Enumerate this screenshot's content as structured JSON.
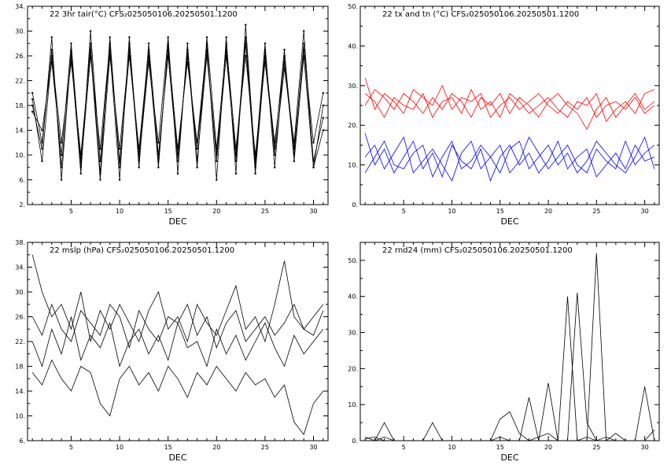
{
  "chart_data": [
    {
      "type": "line",
      "title": "22  3hr tair(°C)  CFS₂025050106.20250501.1200",
      "xlabel": "DEC",
      "ylabel": "",
      "xlim": [
        0.5,
        31.5
      ],
      "ylim": [
        2,
        34
      ],
      "xticks": [
        5,
        10,
        15,
        20,
        25,
        30
      ],
      "yticks": [
        2,
        6,
        10,
        14,
        18,
        22,
        26,
        30,
        34
      ],
      "ytick_labels": [
        "2.",
        "6.",
        "10.",
        "14.",
        "18.",
        "22.",
        "26.",
        "30.",
        "34."
      ],
      "line_colors": [
        "#000000"
      ],
      "grid": false,
      "description_series": "approx. 30 ensemble members of 3-hourly air temperature with strong diurnal cycle, daily min ~4-10, daily max ~26-32",
      "series": [
        {
          "values": [
            18,
            11,
            29,
            6,
            27,
            9,
            28,
            7,
            29,
            8,
            28,
            10,
            26,
            9,
            27,
            11,
            25,
            12,
            28,
            6,
            29,
            7,
            31,
            8,
            27,
            10,
            24,
            12,
            30,
            8,
            18
          ]
        },
        {
          "values": [
            20,
            12,
            27,
            8,
            26,
            7,
            30,
            9,
            27,
            6,
            29,
            8,
            28,
            10,
            26,
            9,
            27,
            8,
            29,
            11,
            27,
            9,
            28,
            7,
            26,
            12,
            25,
            10,
            28,
            9,
            16
          ]
        },
        {
          "values": [
            17,
            14,
            25,
            10,
            28,
            8,
            26,
            11,
            28,
            9,
            26,
            11,
            27,
            8,
            28,
            10,
            26,
            11,
            27,
            9,
            26,
            10,
            29,
            9,
            28,
            8,
            26,
            11,
            27,
            12,
            20
          ]
        },
        {
          "values": [
            19,
            9,
            26,
            12,
            25,
            10,
            27,
            6,
            26,
            11,
            27,
            9,
            25,
            12,
            29,
            7,
            28,
            9,
            26,
            10,
            28,
            11,
            26,
            10,
            25,
            11,
            27,
            9,
            26,
            8,
            14
          ]
        }
      ]
    },
    {
      "type": "line",
      "title": "22  tx  and  tn  (°C)  CFS₂025050106.20250501.1200",
      "xlabel": "DEC",
      "ylabel": "",
      "xlim": [
        0.5,
        31.5
      ],
      "ylim": [
        0,
        50
      ],
      "xticks": [
        5,
        10,
        15,
        20,
        25,
        30
      ],
      "yticks": [
        0,
        10,
        20,
        30,
        40,
        50
      ],
      "ytick_labels": [
        "0.",
        "10.",
        "20.",
        "30.",
        "40.",
        "50."
      ],
      "line_colors": [
        "#ff0000",
        "#0000ff"
      ],
      "grid": false,
      "series": [
        {
          "name": "tx",
          "values": [
            32,
            24,
            28,
            26,
            23,
            29,
            27,
            25,
            30,
            24,
            27,
            26,
            28,
            22,
            25,
            27,
            24,
            26,
            28,
            25,
            23,
            26,
            24,
            27,
            22,
            25,
            26,
            24,
            27,
            23,
            25
          ]
        },
        {
          "name": "tx",
          "values": [
            28,
            26,
            22,
            27,
            25,
            24,
            28,
            22,
            26,
            27,
            23,
            29,
            24,
            26,
            22,
            28,
            26,
            23,
            25,
            27,
            24,
            22,
            26,
            25,
            28,
            21,
            24,
            26,
            23,
            28,
            29
          ]
        },
        {
          "name": "tx",
          "values": [
            25,
            29,
            27,
            24,
            28,
            26,
            23,
            27,
            24,
            28,
            26,
            22,
            27,
            25,
            28,
            23,
            27,
            25,
            22,
            26,
            28,
            25,
            23,
            19,
            24,
            27,
            22,
            25,
            28,
            24,
            26
          ]
        },
        {
          "name": "tn",
          "values": [
            18,
            10,
            14,
            8,
            12,
            16,
            9,
            13,
            7,
            15,
            11,
            9,
            14,
            6,
            12,
            15,
            10,
            13,
            8,
            11,
            16,
            9,
            12,
            14,
            7,
            10,
            13,
            9,
            15,
            11,
            12
          ]
        },
        {
          "name": "tn",
          "values": [
            12,
            15,
            9,
            13,
            17,
            8,
            11,
            14,
            10,
            6,
            13,
            16,
            9,
            12,
            15,
            8,
            11,
            17,
            13,
            9,
            12,
            15,
            10,
            8,
            14,
            11,
            9,
            16,
            10,
            13,
            15
          ]
        },
        {
          "name": "tn",
          "values": [
            8,
            12,
            16,
            10,
            9,
            13,
            15,
            7,
            12,
            16,
            9,
            11,
            15,
            12,
            8,
            14,
            16,
            9,
            12,
            15,
            10,
            13,
            8,
            11,
            16,
            13,
            10,
            8,
            12,
            17,
            9
          ]
        }
      ]
    },
    {
      "type": "line",
      "title": "22  mslp  (hPa)  CFS₂025050106.20250501.1200",
      "xlabel": "DEC",
      "ylabel": "",
      "xlim": [
        0.5,
        31.5
      ],
      "ylim": [
        6,
        38
      ],
      "xticks": [
        5,
        10,
        15,
        20,
        25,
        30
      ],
      "yticks": [
        6,
        10,
        14,
        18,
        22,
        26,
        30,
        34,
        38
      ],
      "ytick_labels": [
        "6.",
        "10.",
        "14.",
        "18.",
        "22.",
        "26.",
        "30.",
        "34.",
        "38."
      ],
      "line_colors": [
        "#000000"
      ],
      "grid": false,
      "series": [
        {
          "values": [
            36,
            30,
            26,
            28,
            24,
            30,
            22,
            27,
            24,
            28,
            25,
            22,
            27,
            30,
            24,
            26,
            22,
            28,
            25,
            23,
            27,
            31,
            24,
            26,
            22,
            28,
            35,
            26,
            24,
            23,
            27
          ]
        },
        {
          "values": [
            22,
            18,
            24,
            20,
            26,
            19,
            23,
            21,
            25,
            18,
            22,
            24,
            20,
            23,
            19,
            25,
            21,
            22,
            18,
            24,
            20,
            23,
            19,
            22,
            25,
            21,
            18,
            23,
            20,
            22,
            24
          ]
        },
        {
          "values": [
            17,
            15,
            19,
            16,
            14,
            18,
            17,
            12,
            10,
            16,
            18,
            15,
            17,
            14,
            18,
            16,
            13,
            17,
            15,
            18,
            16,
            14,
            17,
            15,
            16,
            13,
            15,
            9,
            7,
            12,
            14
          ]
        },
        {
          "values": [
            26,
            23,
            28,
            24,
            22,
            27,
            25,
            23,
            28,
            26,
            21,
            27,
            24,
            22,
            26,
            25,
            28,
            23,
            26,
            21,
            25,
            27,
            22,
            24,
            26,
            23,
            25,
            28,
            24,
            26,
            28
          ]
        }
      ]
    },
    {
      "type": "line",
      "title": "22  rnd24  (mm)  CFS₂025050106.20250501.1200",
      "xlabel": "DEC",
      "ylabel": "",
      "xlim": [
        0.5,
        31.5
      ],
      "ylim": [
        0,
        55
      ],
      "xticks": [
        5,
        10,
        15,
        20,
        25,
        30
      ],
      "yticks": [
        0,
        10,
        20,
        30,
        40,
        50
      ],
      "ytick_labels": [
        "0.",
        "10.",
        "20.",
        "30.",
        "40.",
        "50."
      ],
      "line_colors": [
        "#000000"
      ],
      "grid": false,
      "series": [
        {
          "values": [
            0.5,
            1,
            0,
            0,
            0,
            0,
            0,
            0,
            0,
            0,
            0,
            0,
            0,
            0,
            1,
            0,
            0,
            0,
            1,
            2,
            0,
            40,
            0,
            1,
            0,
            0,
            0,
            0,
            0,
            0,
            0
          ]
        },
        {
          "values": [
            0,
            0,
            5,
            0,
            0,
            0,
            0,
            0,
            0,
            0,
            0,
            0,
            0,
            0,
            6,
            8,
            2,
            0,
            0,
            0,
            0,
            0,
            41,
            5,
            0,
            1,
            0,
            0,
            0,
            0,
            0
          ]
        },
        {
          "values": [
            0,
            0,
            0,
            0,
            0,
            0,
            0,
            5,
            0,
            0,
            0,
            0,
            0,
            0,
            0,
            0,
            0,
            0,
            0,
            16,
            0,
            0,
            0,
            0,
            52,
            0,
            0,
            0,
            0,
            15,
            0
          ]
        },
        {
          "values": [
            1,
            0,
            1,
            0,
            0,
            0,
            0,
            0,
            0,
            0,
            0,
            0,
            0,
            0,
            0,
            0,
            0,
            12,
            0,
            0,
            0,
            0,
            0,
            0,
            0,
            0,
            2,
            0,
            0,
            0,
            3
          ]
        }
      ]
    }
  ]
}
